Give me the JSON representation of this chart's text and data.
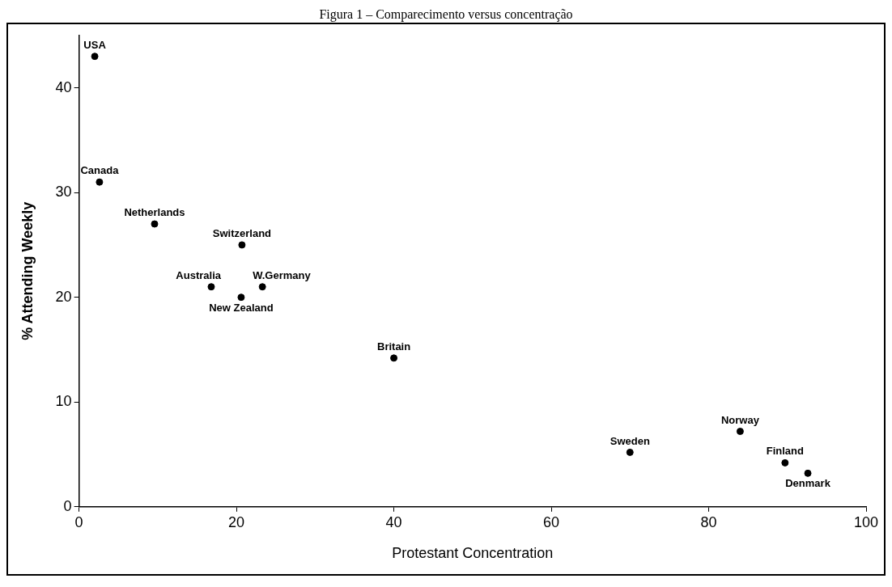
{
  "chart_data": {
    "type": "scatter",
    "title": "Figura 1 – Comparecimento versus concentração",
    "xlabel": "Protestant Concentration",
    "ylabel": "% Attending Weekly",
    "x": [
      2.0,
      2.6,
      9.6,
      20.7,
      16.8,
      20.6,
      23.3,
      40,
      70,
      84,
      89.7,
      92.6
    ],
    "values": [
      43,
      31,
      27,
      25,
      21,
      20,
      21,
      14.2,
      5.2,
      7.2,
      4.2,
      3.2
    ],
    "color": "#000000",
    "marker": "circle",
    "grid": false,
    "legend": false,
    "xlim": [
      0,
      100
    ],
    "xticks": [
      0,
      20,
      40,
      60,
      80,
      100
    ],
    "ylim": [
      0,
      45
    ],
    "yticks": [
      0,
      10,
      20,
      30,
      40
    ],
    "annotations": [
      {
        "text": "USA",
        "x": 2.0,
        "y": 43
      },
      {
        "text": "Canada",
        "x": 2.6,
        "y": 31
      },
      {
        "text": "Netherlands",
        "x": 9.6,
        "y": 27
      },
      {
        "text": "Switzerland",
        "x": 20.7,
        "y": 25
      },
      {
        "text": "Australia",
        "x": 16.8,
        "y": 21
      },
      {
        "text": "New Zealand",
        "x": 20.6,
        "y": 20
      },
      {
        "text": "W.Germany",
        "x": 23.3,
        "y": 21
      },
      {
        "text": "Britain",
        "x": 40,
        "y": 14.2
      },
      {
        "text": "Sweden",
        "x": 70,
        "y": 5.2
      },
      {
        "text": "Norway",
        "x": 84,
        "y": 7.2
      },
      {
        "text": "Finland",
        "x": 89.7,
        "y": 4.2
      },
      {
        "text": "Denmark",
        "x": 92.6,
        "y": 3.2
      }
    ]
  }
}
